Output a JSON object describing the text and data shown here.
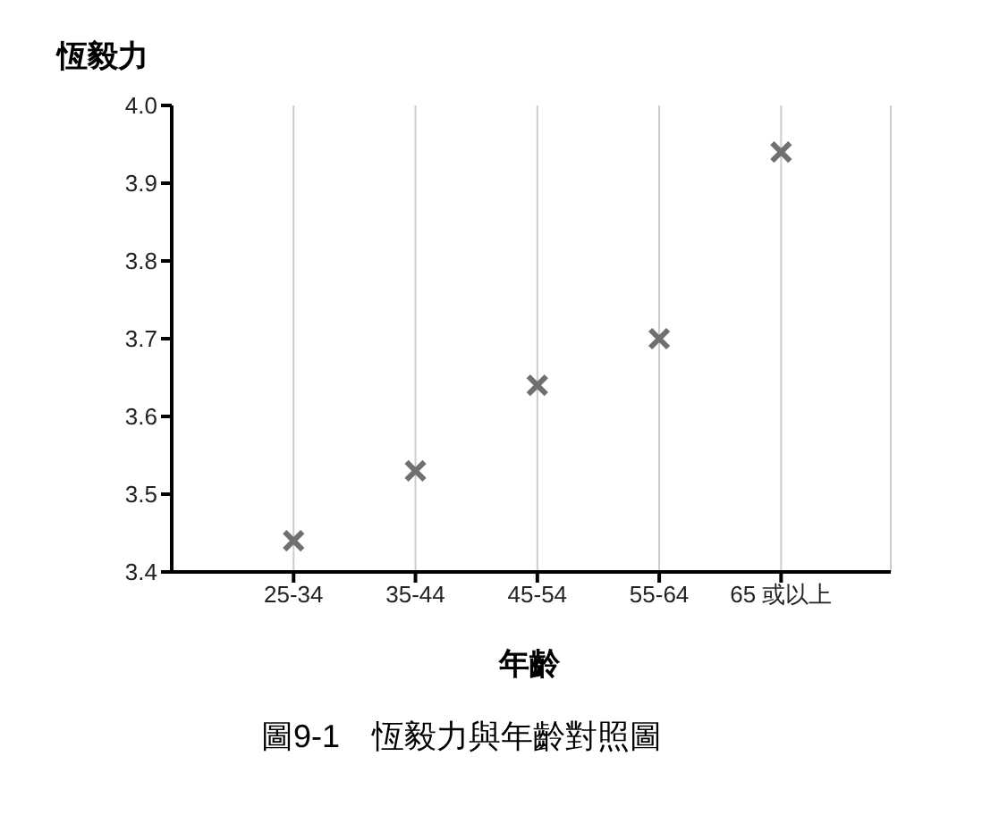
{
  "chart_data": {
    "type": "scatter",
    "title": "圖9-1　恆毅力與年齡對照圖",
    "xlabel": "年齡",
    "ylabel": "恆毅力",
    "categories": [
      "25-34",
      "35-44",
      "45-54",
      "55-64",
      "65 或以上"
    ],
    "values": [
      3.44,
      3.53,
      3.64,
      3.7,
      3.94
    ],
    "color": "#707070",
    "marker": "cross",
    "grid": "x",
    "ylim": [
      3.4,
      4.0
    ],
    "yticks": [
      3.4,
      3.5,
      3.6,
      3.7,
      3.8,
      3.9,
      {
        "value": 4,
        "label": "4.0"
      }
    ]
  }
}
